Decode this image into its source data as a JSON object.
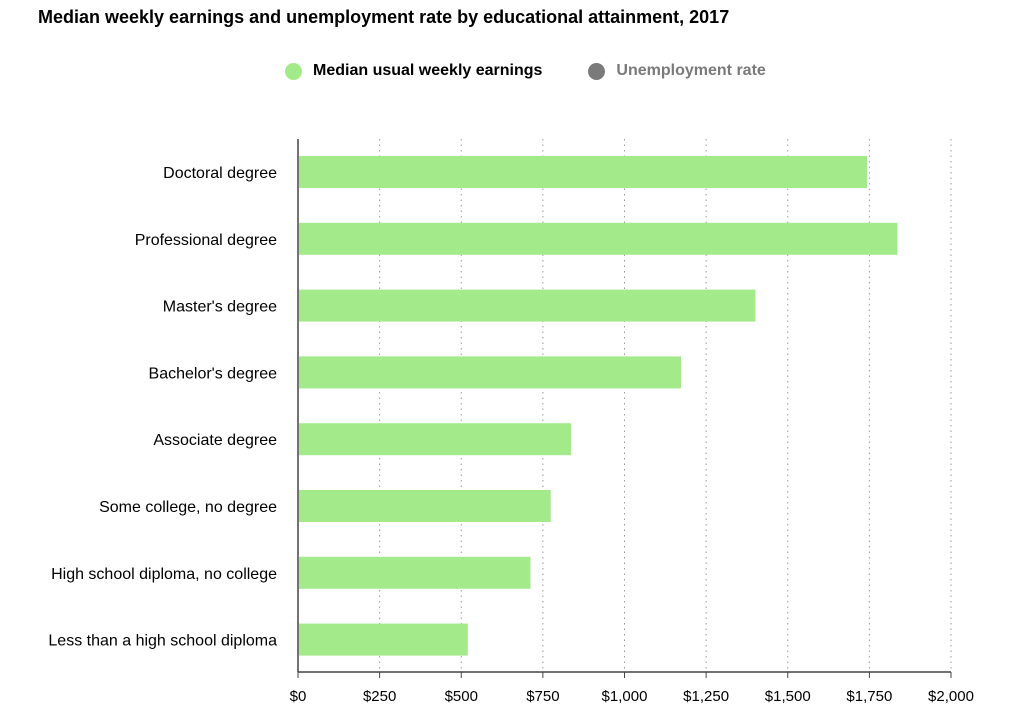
{
  "chart_data": {
    "type": "bar",
    "orientation": "horizontal",
    "title": "Median weekly earnings and unemployment rate by educational attainment, 2017",
    "categories": [
      "Doctoral degree",
      "Professional degree",
      "Master's degree",
      "Bachelor's degree",
      "Associate degree",
      "Some college, no degree",
      "High school diploma, no college",
      "Less than a high school diploma"
    ],
    "series": [
      {
        "name": "Median usual weekly earnings",
        "color": "#a3ea8a",
        "values": [
          1743,
          1836,
          1401,
          1173,
          836,
          774,
          712,
          520
        ]
      }
    ],
    "legend": {
      "placement": "top",
      "items": [
        {
          "label": "Median usual weekly earnings",
          "color": "#a3ea8a",
          "active": true
        },
        {
          "label": "Unemployment rate",
          "color": "#7a7a7a",
          "active": false
        }
      ]
    },
    "xlim": [
      0,
      2000
    ],
    "xticks": [
      0,
      250,
      500,
      750,
      1000,
      1250,
      1500,
      1750,
      2000
    ],
    "xtick_labels": [
      "$0",
      "$250",
      "$500",
      "$750",
      "$1,000",
      "$1,250",
      "$1,500",
      "$1,750",
      "$2,000"
    ],
    "grid": true
  }
}
